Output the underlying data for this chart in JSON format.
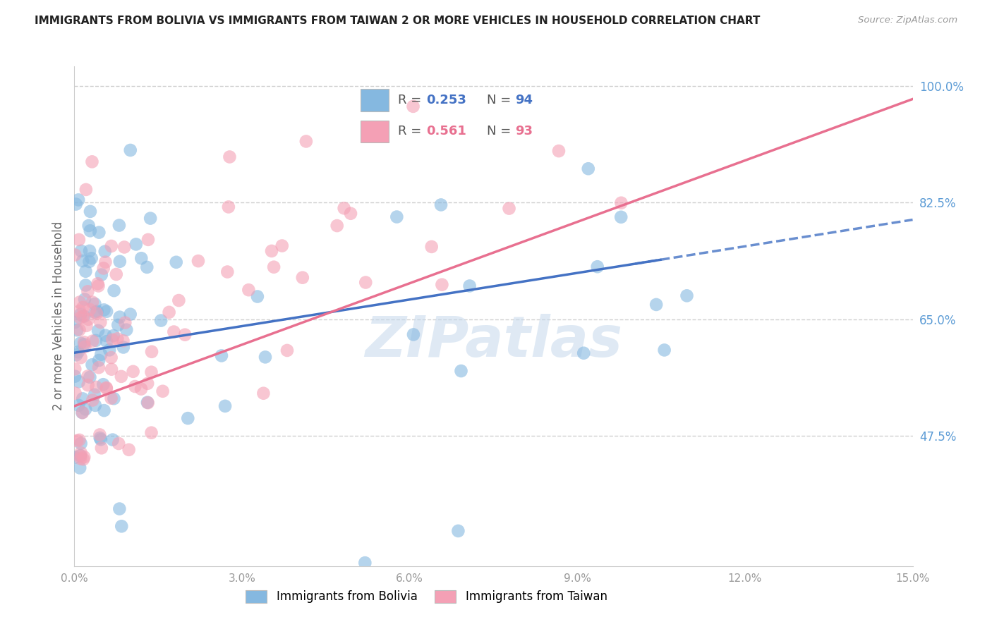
{
  "title": "IMMIGRANTS FROM BOLIVIA VS IMMIGRANTS FROM TAIWAN 2 OR MORE VEHICLES IN HOUSEHOLD CORRELATION CHART",
  "source": "Source: ZipAtlas.com",
  "ylabel": "2 or more Vehicles in Household",
  "yticks_right": [
    100.0,
    82.5,
    65.0,
    47.5
  ],
  "ytick_labels_right": [
    "100.0%",
    "82.5%",
    "65.0%",
    "47.5%"
  ],
  "xmin": 0.0,
  "xmax": 15.0,
  "ymin": 28.0,
  "ymax": 103.0,
  "bolivia_R": 0.253,
  "bolivia_N": 94,
  "taiwan_R": 0.561,
  "taiwan_N": 93,
  "bolivia_color": "#85b8e0",
  "taiwan_color": "#f4a0b5",
  "bolivia_line_color": "#4472c4",
  "taiwan_line_color": "#e87090",
  "legend_label_bolivia": "Immigrants from Bolivia",
  "legend_label_taiwan": "Immigrants from Taiwan",
  "watermark": "ZIPatlas",
  "right_yaxis_color": "#5b9bd5",
  "xtick_color": "#999999",
  "grid_color": "#d0d0d0",
  "ylabel_color": "#666666",
  "title_color": "#222222",
  "source_color": "#999999"
}
